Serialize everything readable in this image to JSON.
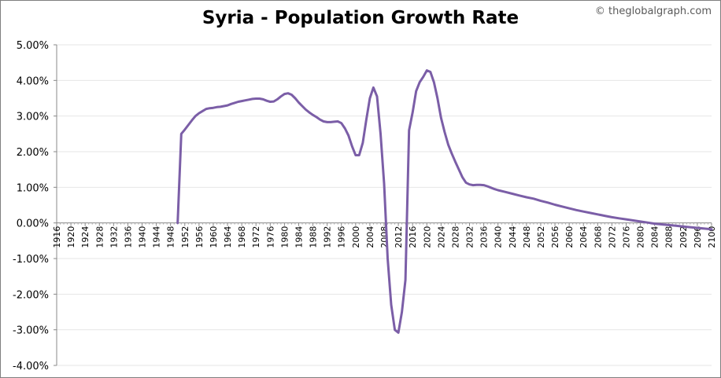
{
  "chart_data": {
    "type": "line",
    "title": "Syria - Population Growth Rate",
    "watermark": "© theglobalgraph.com",
    "xlim": [
      1916,
      2100
    ],
    "ylim": [
      -4,
      5
    ],
    "y_ticks": [
      5,
      4,
      3,
      2,
      1,
      0,
      -1,
      -2,
      -3,
      -4
    ],
    "y_tick_labels": [
      "5.00%",
      "4.00%",
      "3.00%",
      "2.00%",
      "1.00%",
      "0.00%",
      "-1.00%",
      "-2.00%",
      "-3.00%",
      "-4.00%"
    ],
    "x_tick_labels": [
      "1916",
      "1920",
      "1924",
      "1928",
      "1932",
      "1936",
      "1940",
      "1944",
      "1948",
      "1952",
      "1956",
      "1960",
      "1964",
      "1968",
      "1972",
      "1976",
      "1980",
      "1984",
      "1988",
      "1992",
      "1996",
      "2000",
      "2004",
      "2008",
      "2012",
      "2016",
      "2020",
      "2024",
      "2028",
      "2032",
      "2036",
      "2040",
      "2044",
      "2048",
      "2052",
      "2056",
      "2060",
      "2064",
      "2068",
      "2072",
      "2076",
      "2080",
      "2084",
      "2088",
      "2092",
      "2096",
      "2100"
    ],
    "grid": true,
    "line_color": "#7b5ea7",
    "series": [
      {
        "x": [
          1950,
          1951,
          1952,
          1953,
          1954,
          1955,
          1956,
          1957,
          1958,
          1959,
          1960,
          1961,
          1962,
          1963,
          1964,
          1965,
          1966,
          1967,
          1968,
          1969,
          1970,
          1971,
          1972,
          1973,
          1974,
          1975,
          1976,
          1977,
          1978,
          1979,
          1980,
          1981,
          1982,
          1983,
          1984,
          1985,
          1986,
          1987,
          1988,
          1989,
          1990,
          1991,
          1992,
          1993,
          1994,
          1995,
          1996,
          1997,
          1998,
          1999,
          2000,
          2001,
          2002,
          2003,
          2004,
          2005,
          2006,
          2007,
          2008,
          2009,
          2010,
          2011,
          2012,
          2013,
          2014,
          2015,
          2016,
          2017,
          2018,
          2019,
          2020,
          2021,
          2022,
          2023,
          2024,
          2025,
          2026,
          2027,
          2028,
          2029,
          2030,
          2031,
          2032,
          2033,
          2034,
          2035,
          2036,
          2037,
          2038,
          2039,
          2040,
          2042,
          2044,
          2046,
          2048,
          2050,
          2052,
          2054,
          2056,
          2058,
          2060,
          2062,
          2064,
          2066,
          2068,
          2070,
          2072,
          2074,
          2076,
          2078,
          2080,
          2082,
          2084,
          2086,
          2088,
          2090,
          2092,
          2094,
          2096,
          2098,
          2100
        ],
        "y": [
          0.0,
          2.5,
          2.62,
          2.75,
          2.88,
          3.0,
          3.08,
          3.14,
          3.2,
          3.22,
          3.23,
          3.25,
          3.26,
          3.28,
          3.3,
          3.34,
          3.37,
          3.4,
          3.42,
          3.44,
          3.46,
          3.48,
          3.49,
          3.49,
          3.47,
          3.43,
          3.4,
          3.41,
          3.47,
          3.55,
          3.62,
          3.64,
          3.6,
          3.5,
          3.38,
          3.28,
          3.18,
          3.1,
          3.03,
          2.97,
          2.9,
          2.85,
          2.83,
          2.83,
          2.84,
          2.85,
          2.8,
          2.65,
          2.45,
          2.15,
          1.9,
          1.9,
          2.25,
          2.9,
          3.5,
          3.8,
          3.55,
          2.5,
          1.1,
          -1.0,
          -2.3,
          -3.0,
          -3.08,
          -2.5,
          -1.6,
          2.6,
          3.1,
          3.7,
          3.95,
          4.1,
          4.28,
          4.24,
          3.95,
          3.5,
          2.95,
          2.55,
          2.2,
          1.95,
          1.72,
          1.5,
          1.28,
          1.13,
          1.08,
          1.06,
          1.07,
          1.07,
          1.06,
          1.03,
          0.99,
          0.95,
          0.92,
          0.87,
          0.82,
          0.77,
          0.72,
          0.68,
          0.62,
          0.57,
          0.51,
          0.46,
          0.41,
          0.36,
          0.32,
          0.28,
          0.24,
          0.2,
          0.16,
          0.13,
          0.1,
          0.07,
          0.04,
          0.01,
          -0.02,
          -0.04,
          -0.06,
          -0.08,
          -0.1,
          -0.12,
          -0.14,
          -0.16,
          -0.18
        ]
      }
    ]
  }
}
